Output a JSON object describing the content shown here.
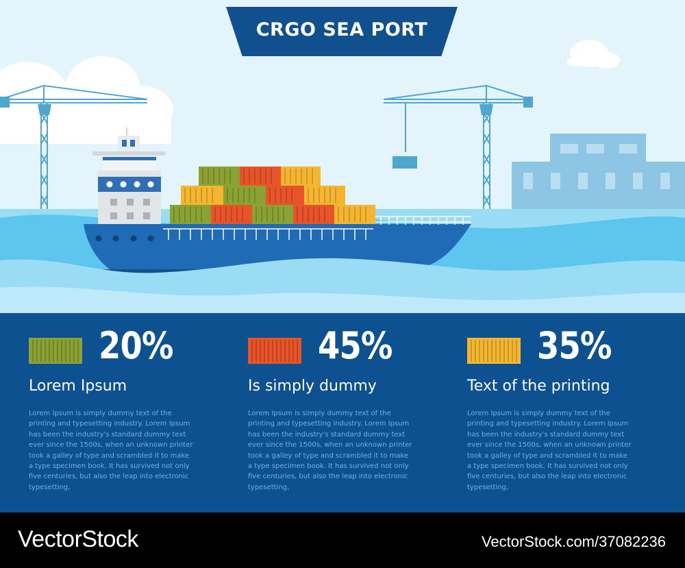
{
  "header": {
    "title": "CRGO SEA PORT"
  },
  "colors": {
    "sky": "#e3f4fb",
    "panel": "#0e5190",
    "ship_hull": "#1f6bb5",
    "sea_light": "#9bdcf5",
    "sea_mid": "#5cc6ee",
    "container_green": "#8aa234",
    "container_red": "#e8542a",
    "container_yellow": "#f4b630",
    "building": "#8cc6e4",
    "crane": "#4fa6cf"
  },
  "stats": [
    {
      "icon": "green-container-icon",
      "value": "20%",
      "heading": "Lorem Ipsum",
      "body": "Lorem Ipsum is simply dummy text of the printing and typesetting industry. Lorem Ipsum has been the industry's standard dummy text ever since the 1500s, when an unknown printer took a galley of type and scrambled it to make a type specimen book. It has survived not only five centuries, but also the leap into electronic typesetting,"
    },
    {
      "icon": "red-container-icon",
      "value": "45%",
      "heading": "Is simply dummy",
      "body": "Lorem Ipsum is simply dummy text of the printing and typesetting industry. Lorem Ipsum has been the industry's standard dummy text ever since the 1500s, when an unknown printer took a galley of type and scrambled it to make a type specimen book. It has survived not only five centuries, but also the leap into electronic typesetting,"
    },
    {
      "icon": "yellow-container-icon",
      "value": "35%",
      "heading": "Text of the printing",
      "body": "Lorem Ipsum is simply dummy text of the printing and typesetting industry. Lorem Ipsum has been the industry's standard dummy text ever since the 1500s, when an unknown printer took a galley of type and scrambled it to make a type specimen book. It has survived not only five centuries, but also the leap into electronic typesetting,"
    }
  ],
  "watermark": {
    "brand": "VectorStock",
    "id_text": "VectorStock.com/37082236"
  }
}
